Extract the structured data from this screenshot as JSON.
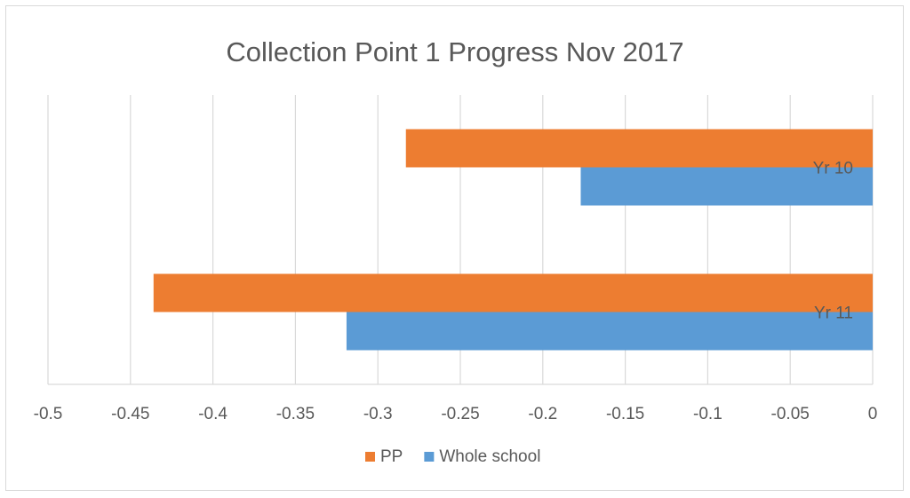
{
  "chart_data": {
    "type": "bar",
    "orientation": "horizontal",
    "title": "Collection Point 1 Progress Nov 2017",
    "categories": [
      "Yr 10",
      "Yr 11"
    ],
    "series": [
      {
        "name": "PP",
        "values": [
          -0.283,
          -0.436
        ],
        "color": "#ed7d31"
      },
      {
        "name": "Whole school",
        "values": [
          -0.177,
          -0.319
        ],
        "color": "#5b9bd5"
      }
    ],
    "xlim": [
      -0.5,
      0
    ],
    "xticks": [
      "-0.5",
      "-0.45",
      "-0.4",
      "-0.35",
      "-0.3",
      "-0.25",
      "-0.2",
      "-0.15",
      "-0.1",
      "-0.05",
      "0"
    ],
    "xtick_values": [
      -0.5,
      -0.45,
      -0.4,
      -0.35,
      -0.3,
      -0.25,
      -0.2,
      -0.15,
      -0.1,
      -0.05,
      0
    ],
    "grid": true,
    "legend_position": "bottom",
    "gridline_color": "#d9d9d9"
  }
}
